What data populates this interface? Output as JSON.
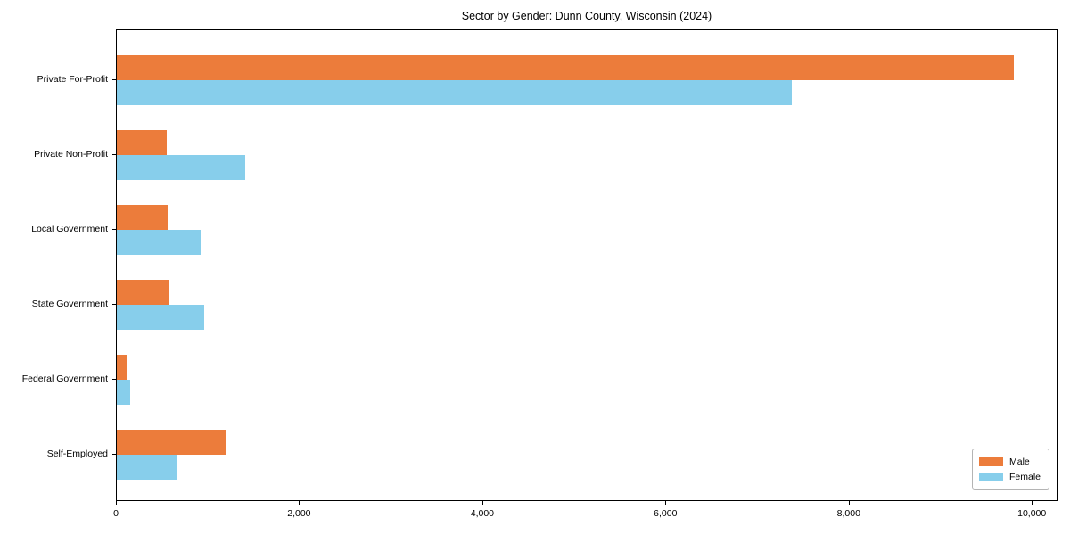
{
  "chart_data": {
    "type": "bar",
    "orientation": "horizontal",
    "title": "Sector by Gender: Dunn County, Wisconsin (2024)",
    "categories": [
      "Private For-Profit",
      "Private Non-Profit",
      "Local Government",
      "State Government",
      "Federal Government",
      "Self-Employed"
    ],
    "series": [
      {
        "name": "Male",
        "color": "#EC7C3B",
        "values": [
          9790,
          545,
          550,
          575,
          107,
          1195
        ]
      },
      {
        "name": "Female",
        "color": "#87CEEB",
        "values": [
          7365,
          1400,
          918,
          955,
          143,
          660
        ]
      }
    ],
    "xlim": [
      0,
      10280
    ],
    "xticks": [
      0,
      2000,
      4000,
      6000,
      8000,
      10000
    ],
    "xtick_labels": [
      "0",
      "2,000",
      "4,000",
      "6,000",
      "8,000",
      "10,000"
    ],
    "xlabel": "",
    "ylabel": "",
    "grid": false,
    "legend": {
      "position": "lower right",
      "entries": [
        "Male",
        "Female"
      ]
    }
  }
}
